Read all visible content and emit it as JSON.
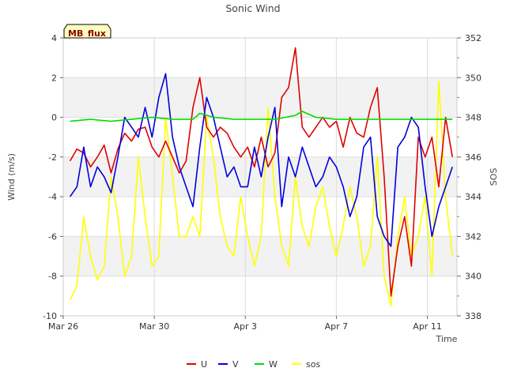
{
  "chart_data": {
    "type": "line",
    "title": "Sonic Wind",
    "xlabel": "Time",
    "ylabel_left": "Wind (m/s)",
    "ylabel_right": "SOS",
    "badge": "MB_flux",
    "x_domain_days": [
      0,
      17.3
    ],
    "x_ticks": [
      {
        "day": 0,
        "label": "Mar 26"
      },
      {
        "day": 4,
        "label": "Mar 30"
      },
      {
        "day": 8,
        "label": "Apr 3"
      },
      {
        "day": 12,
        "label": "Apr 7"
      },
      {
        "day": 16,
        "label": "Apr 11"
      }
    ],
    "ylim_left": [
      -10,
      4
    ],
    "y_ticks_left": [
      -10,
      -8,
      -6,
      -4,
      -2,
      0,
      2,
      4
    ],
    "ylim_right": [
      338,
      352
    ],
    "y_ticks_right": [
      338,
      340,
      342,
      344,
      346,
      348,
      350,
      352
    ],
    "bands": [
      [
        -8,
        -6
      ],
      [
        -4,
        -2
      ],
      [
        0,
        2
      ]
    ],
    "series": [
      {
        "name": "U",
        "color": "#e00000",
        "axis": "left",
        "x": [
          0.3,
          0.6,
          0.9,
          1.2,
          1.5,
          1.8,
          2.1,
          2.4,
          2.7,
          3.0,
          3.3,
          3.6,
          3.9,
          4.2,
          4.5,
          4.8,
          5.1,
          5.4,
          5.7,
          6.0,
          6.3,
          6.6,
          6.9,
          7.2,
          7.5,
          7.8,
          8.1,
          8.4,
          8.7,
          9.0,
          9.3,
          9.6,
          9.9,
          10.2,
          10.5,
          10.8,
          11.1,
          11.4,
          11.7,
          12.0,
          12.3,
          12.6,
          12.9,
          13.2,
          13.5,
          13.8,
          14.1,
          14.4,
          14.7,
          15.0,
          15.3,
          15.6,
          15.9,
          16.2,
          16.5,
          16.8,
          17.1
        ],
        "y": [
          -2.2,
          -1.6,
          -1.8,
          -2.5,
          -2.0,
          -1.4,
          -2.8,
          -1.6,
          -0.8,
          -1.2,
          -0.6,
          -0.5,
          -1.5,
          -2.0,
          -1.2,
          -2.0,
          -2.8,
          -2.2,
          0.5,
          2.0,
          -0.5,
          -1.0,
          -0.5,
          -0.8,
          -1.5,
          -2.0,
          -1.5,
          -2.5,
          -1.0,
          -2.5,
          -1.8,
          1.0,
          1.5,
          3.5,
          -0.5,
          -1.0,
          -0.5,
          0.0,
          -0.5,
          -0.2,
          -1.5,
          0.0,
          -0.8,
          -1.0,
          0.5,
          1.5,
          -3.0,
          -9.0,
          -6.5,
          -5.0,
          -7.5,
          -1.0,
          -2.0,
          -1.0,
          -3.5,
          0.0,
          -2.0
        ]
      },
      {
        "name": "V",
        "color": "#0000dd",
        "axis": "left",
        "x": [
          0.3,
          0.6,
          0.9,
          1.2,
          1.5,
          1.8,
          2.1,
          2.4,
          2.7,
          3.0,
          3.3,
          3.6,
          3.9,
          4.2,
          4.5,
          4.8,
          5.1,
          5.4,
          5.7,
          6.0,
          6.3,
          6.6,
          6.9,
          7.2,
          7.5,
          7.8,
          8.1,
          8.4,
          8.7,
          9.0,
          9.3,
          9.6,
          9.9,
          10.2,
          10.5,
          10.8,
          11.1,
          11.4,
          11.7,
          12.0,
          12.3,
          12.6,
          12.9,
          13.2,
          13.5,
          13.8,
          14.1,
          14.4,
          14.7,
          15.0,
          15.3,
          15.6,
          15.9,
          16.2,
          16.5,
          16.8,
          17.1
        ],
        "y": [
          -4.0,
          -3.5,
          -1.5,
          -3.5,
          -2.5,
          -3.0,
          -3.8,
          -2.0,
          0.0,
          -0.5,
          -1.0,
          0.5,
          -1.0,
          1.0,
          2.2,
          -1.0,
          -2.5,
          -3.5,
          -4.5,
          -1.5,
          1.0,
          0.0,
          -1.5,
          -3.0,
          -2.5,
          -3.5,
          -3.5,
          -1.5,
          -3.0,
          -1.0,
          0.5,
          -4.5,
          -2.0,
          -3.0,
          -1.5,
          -2.5,
          -3.5,
          -3.0,
          -2.0,
          -2.5,
          -3.5,
          -5.0,
          -4.0,
          -1.5,
          -1.0,
          -5.0,
          -6.0,
          -6.5,
          -1.5,
          -1.0,
          0.0,
          -0.5,
          -3.5,
          -6.0,
          -4.5,
          -3.5,
          -2.5
        ]
      },
      {
        "name": "W",
        "color": "#00dd00",
        "axis": "left",
        "x": [
          0.3,
          1.2,
          2.1,
          3.0,
          3.9,
          4.8,
          5.7,
          6.0,
          6.6,
          7.5,
          8.4,
          9.3,
          10.2,
          10.5,
          11.1,
          12.0,
          12.9,
          13.8,
          14.7,
          15.6,
          16.5,
          17.1
        ],
        "y": [
          -0.2,
          -0.1,
          -0.2,
          -0.1,
          0.0,
          -0.1,
          -0.1,
          0.2,
          0.0,
          -0.1,
          -0.1,
          -0.1,
          0.1,
          0.3,
          0.0,
          -0.1,
          -0.1,
          -0.1,
          -0.1,
          -0.1,
          -0.1,
          -0.1
        ]
      },
      {
        "name": "sos",
        "color": "#ffff00",
        "axis": "right",
        "x": [
          0.3,
          0.6,
          0.9,
          1.2,
          1.5,
          1.8,
          2.1,
          2.4,
          2.7,
          3.0,
          3.3,
          3.6,
          3.9,
          4.2,
          4.5,
          4.8,
          5.1,
          5.4,
          5.7,
          6.0,
          6.3,
          6.6,
          6.9,
          7.2,
          7.5,
          7.8,
          8.1,
          8.4,
          8.7,
          9.0,
          9.3,
          9.6,
          9.9,
          10.2,
          10.5,
          10.8,
          11.1,
          11.4,
          11.7,
          12.0,
          12.3,
          12.6,
          12.9,
          13.2,
          13.5,
          13.8,
          14.1,
          14.4,
          14.7,
          15.0,
          15.3,
          15.6,
          15.9,
          16.2,
          16.5,
          16.8,
          17.1
        ],
        "y": [
          338.8,
          339.5,
          343.0,
          341.0,
          339.8,
          340.5,
          345.0,
          343.0,
          340.0,
          341.0,
          346.0,
          343.0,
          340.5,
          341.0,
          348.0,
          345.0,
          342.0,
          342.0,
          343.0,
          342.0,
          348.0,
          346.0,
          343.0,
          341.5,
          341.0,
          344.0,
          342.0,
          340.5,
          342.0,
          348.5,
          344.0,
          341.5,
          340.5,
          345.0,
          342.5,
          341.5,
          343.5,
          344.5,
          342.5,
          341.0,
          342.5,
          344.5,
          343.0,
          340.5,
          341.5,
          346.0,
          340.0,
          338.5,
          342.0,
          344.0,
          341.0,
          342.0,
          344.0,
          340.0,
          349.8,
          344.0,
          341.0
        ]
      }
    ],
    "legend_position": "bottom-center"
  }
}
